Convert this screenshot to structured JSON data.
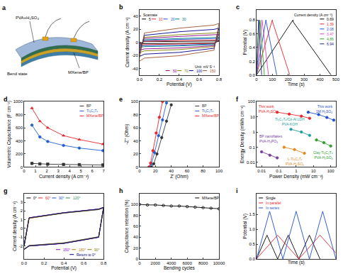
{
  "diagram": {
    "title": "a",
    "electrolyte_label": "PVA+H₂SO₄",
    "state_label": "Bend state",
    "electrode_label": "MXene/BP"
  },
  "chart_data": [
    {
      "title": "b",
      "type": "line",
      "xlabel": "Potential (V)",
      "ylabel": "Current density (A cm⁻³)",
      "x": [
        0,
        0.05,
        0.4,
        0.75,
        0.8,
        0.75,
        0.4,
        0.05,
        0
      ],
      "xlim": [
        0,
        0.8
      ],
      "xticks": [
        {
          "value": 0,
          "label": "0.0"
        },
        0.2,
        0.4,
        0.6,
        0.8
      ],
      "ylim": [
        -50,
        50
      ],
      "yticks": [
        -40,
        -20,
        0,
        20,
        40
      ],
      "grid": false,
      "legend": "top left",
      "annotations": [
        "Scanrate",
        "Unit: mV S⁻¹"
      ],
      "series": [
        {
          "name": "5",
          "color": "#000000",
          "values": [
            -1.7,
            1.0,
            1.5,
            1.9,
            2.0,
            -0.9,
            -1.4,
            -1.7,
            -2.0
          ]
        },
        {
          "name": "10",
          "color": "#e8262b",
          "values": [
            -3,
            1.8,
            2.7,
            3.3,
            3.6,
            -1.5,
            -2.6,
            -3,
            -3.6
          ]
        },
        {
          "name": "20",
          "color": "#1f4fd1",
          "values": [
            -5,
            3,
            4.5,
            5.5,
            6,
            -2.5,
            -4.3,
            -5,
            -6
          ]
        },
        {
          "name": "30",
          "color": "#008080",
          "values": [
            -6.5,
            3.9,
            5.9,
            7.2,
            7.8,
            -3.3,
            -5.5,
            -6.5,
            -7.8
          ]
        },
        {
          "name": "50",
          "color": "#8b008b",
          "values": [
            -10,
            6,
            9,
            11,
            12,
            -5,
            -8.5,
            -10,
            -12
          ]
        },
        {
          "name": "70",
          "color": "#808000",
          "values": [
            -13,
            7.8,
            11.7,
            14.3,
            15.6,
            -6.5,
            -11,
            -13,
            -15.6
          ]
        },
        {
          "name": "100",
          "color": "#00008b",
          "values": [
            -18,
            10.8,
            16.2,
            19.8,
            21.6,
            -9,
            -15.3,
            -18,
            -21.6
          ]
        },
        {
          "name": "150",
          "color": "#a0522d",
          "values": [
            -24,
            14.4,
            21.6,
            26.4,
            28.8,
            -12,
            -20.4,
            -24,
            -28.8
          ]
        }
      ]
    },
    {
      "title": "c",
      "type": "line",
      "xlabel": "Time (s)",
      "ylabel": "Potential (V)",
      "xlim": [
        0,
        500
      ],
      "xticks": [
        0,
        100,
        200,
        300,
        400,
        500
      ],
      "ylim": [
        0,
        0.95
      ],
      "yticks": [
        {
          "value": 0,
          "label": "0.0"
        },
        0.2,
        0.4,
        0.6,
        0.8
      ],
      "grid": false,
      "legend": "top right",
      "annotations": [
        "Current density (A cm⁻³)"
      ],
      "series": [
        {
          "name": "0.69",
          "color": "#000000",
          "x": [
            0,
            230,
            232,
            470
          ],
          "values": [
            0,
            0.8,
            0.77,
            0
          ]
        },
        {
          "name": "1.39",
          "color": "#e8262b",
          "x": [
            0,
            100,
            102,
            210
          ],
          "values": [
            0,
            0.8,
            0.77,
            0
          ]
        },
        {
          "name": "2.08",
          "color": "#1f4fd1",
          "x": [
            0,
            60,
            62,
            128
          ],
          "values": [
            0,
            0.8,
            0.77,
            0
          ]
        },
        {
          "name": "3.47",
          "color": "#e040c0",
          "x": [
            0,
            35,
            37,
            76
          ],
          "values": [
            0,
            0.8,
            0.77,
            0
          ]
        },
        {
          "name": "4.86",
          "color": "#2e9e2e",
          "x": [
            0,
            22,
            24,
            50
          ],
          "values": [
            0,
            0.8,
            0.77,
            0
          ]
        },
        {
          "name": "6.94",
          "color": "#1a237e",
          "x": [
            0,
            14,
            16,
            33
          ],
          "values": [
            0,
            0.8,
            0.77,
            0
          ]
        }
      ]
    },
    {
      "title": "d",
      "type": "line",
      "xlabel": "Current density (A cm⁻³)",
      "ylabel": "Volumetric Capacitance (F cm⁻³)",
      "x": [
        0.69,
        1.39,
        2.08,
        3.47,
        4.86,
        6.94
      ],
      "xlim": [
        0,
        7
      ],
      "xticks": [
        0,
        1,
        2,
        3,
        4,
        5,
        6,
        7
      ],
      "ylim": [
        0,
        1000
      ],
      "yticks": [
        0,
        200,
        400,
        600,
        800,
        1000
      ],
      "grid": false,
      "legend": "top right",
      "series": [
        {
          "name": "BP",
          "color": "#333333",
          "marker": "square",
          "values": [
            55,
            48,
            44,
            40,
            36,
            32
          ]
        },
        {
          "name": "Ti₃C₂Tₓ",
          "color": "#1f5fd1",
          "marker": "circle",
          "values": [
            640,
            460,
            390,
            330,
            290,
            250
          ]
        },
        {
          "name": "MXene/BP",
          "color": "#e8262b",
          "marker": "triangle-up",
          "values": [
            900,
            700,
            600,
            480,
            420,
            350
          ]
        }
      ]
    },
    {
      "title": "e",
      "type": "line",
      "xlabel": "Z' (Ohm)",
      "ylabel": "-Z'' (Ohm)",
      "xlim": [
        0,
        100
      ],
      "xticks": [
        0,
        20,
        40,
        60,
        80,
        100
      ],
      "ylim": [
        0,
        100
      ],
      "yticks": [
        0,
        20,
        40,
        60,
        80,
        100
      ],
      "grid": false,
      "legend": "top right",
      "series": [
        {
          "name": "BP",
          "color": "#333333",
          "marker": "circle",
          "x": [
            15,
            18,
            22,
            28,
            34,
            40
          ],
          "values": [
            0,
            5,
            20,
            45,
            70,
            95
          ]
        },
        {
          "name": "Ti₃C₂Tₓ",
          "color": "#1f5fd1",
          "marker": "circle",
          "x": [
            13,
            15,
            19,
            24,
            29,
            34
          ],
          "values": [
            0,
            5,
            22,
            48,
            72,
            98
          ]
        },
        {
          "name": "MXene/BP",
          "color": "#e8262b",
          "marker": "circle",
          "x": [
            12,
            14,
            17,
            21,
            25,
            29
          ],
          "values": [
            0,
            6,
            25,
            52,
            76,
            100
          ]
        }
      ]
    },
    {
      "title": "f",
      "type": "line",
      "xlabel": "Power Density (mW cm⁻³)",
      "ylabel": "Energy Density (mWh cm⁻³)",
      "log": true,
      "xlim": [
        0.005,
        200
      ],
      "xticks": [
        0.01,
        0.1,
        1,
        10,
        100
      ],
      "ylim": [
        0.005,
        100
      ],
      "yticks": [
        0.01,
        0.1,
        1,
        10,
        100
      ],
      "grid": false,
      "series": [
        {
          "name": "This work\nPVA-H₂SO₄",
          "color": "#e8262b",
          "marker": "circle",
          "x": [
            0.08,
            0.4,
            2,
            6
          ],
          "values": [
            20,
            15,
            11,
            8
          ]
        },
        {
          "name": "This work\n1M H₂SO₄",
          "color": "#1f4fd1",
          "marker": "circle",
          "x": [
            5,
            20,
            60,
            150
          ],
          "values": [
            20,
            14,
            9,
            6
          ]
        },
        {
          "name": "Ti₃C₂Tₓ/Co-Al LDH\nPVA-KOH",
          "color": "#1f9e9e",
          "marker": "circle",
          "x": [
            0.5,
            2,
            6
          ],
          "values": [
            1.5,
            1,
            0.6
          ]
        },
        {
          "name": "Clay Ti₃C₂Tₓ\nPVA-H₂SO₄",
          "color": "#2e9e2e",
          "marker": "circle",
          "x": [
            15,
            40,
            100
          ],
          "values": [
            0.3,
            0.2,
            0.12
          ]
        },
        {
          "name": "L-Ti₃C₂Tₓ\nPVA-H₂SO₄",
          "color": "#e08a1e",
          "marker": "circle",
          "x": [
            0.2,
            0.8,
            3
          ],
          "values": [
            0.1,
            0.07,
            0.04
          ]
        },
        {
          "name": "BP nanoflakes\nPVA-H₃PO₄",
          "color": "#7b3fa0",
          "marker": "circle",
          "x": [
            0.01,
            0.03,
            0.08
          ],
          "values": [
            0.05,
            0.03,
            0.02
          ]
        }
      ]
    },
    {
      "title": "g",
      "type": "line",
      "xlabel": "Potential (V)",
      "ylabel": "Current density (A cm⁻³)",
      "x": [
        0,
        0.05,
        0.4,
        0.75,
        0.8,
        0.75,
        0.4,
        0.05,
        0
      ],
      "xlim": [
        0,
        0.8
      ],
      "xticks": [
        {
          "value": 0,
          "label": "0.0"
        },
        0.2,
        0.4,
        0.6,
        0.8
      ],
      "ylim": [
        -3.5,
        4
      ],
      "yticks": [
        -2,
        -1,
        0,
        1,
        2,
        3
      ],
      "grid": false,
      "legend": "top left",
      "series": [
        {
          "name": "0°",
          "color": "#000000",
          "values": [
            -2.0,
            1.2,
            1.8,
            2.2,
            2.4,
            -1.0,
            -1.7,
            -2.0,
            -2.4
          ]
        },
        {
          "name": "60°",
          "color": "#e8262b",
          "values": [
            -2.0,
            1.15,
            1.78,
            2.18,
            2.38,
            -1.0,
            -1.68,
            -1.98,
            -2.38
          ]
        },
        {
          "name": "90°",
          "color": "#1f4fd1",
          "values": [
            -1.95,
            1.18,
            1.75,
            2.15,
            2.35,
            -0.95,
            -1.65,
            -1.95,
            -2.35
          ]
        },
        {
          "name": "120°",
          "color": "#2e8b57",
          "values": [
            -1.98,
            1.2,
            1.77,
            2.2,
            2.4,
            -0.98,
            -1.7,
            -2.0,
            -2.36
          ]
        },
        {
          "name": "150°",
          "color": "#9400d3",
          "values": [
            -2.02,
            1.22,
            1.8,
            2.22,
            2.42,
            -1.02,
            -1.72,
            -2.02,
            -2.42
          ]
        },
        {
          "name": "180°",
          "color": "#b8860b",
          "values": [
            -1.96,
            1.16,
            1.76,
            2.16,
            2.36,
            -0.97,
            -1.66,
            -1.97,
            -2.37
          ]
        },
        {
          "name": "90°",
          "color": "#808000",
          "values": [
            -1.97,
            1.19,
            1.77,
            2.19,
            2.39,
            -0.99,
            -1.69,
            -1.99,
            -2.39
          ]
        },
        {
          "name": "Return to 0°",
          "color": "#000080",
          "values": [
            -2.0,
            1.21,
            1.79,
            2.21,
            2.41,
            -1.01,
            -1.71,
            -2.01,
            -2.41
          ]
        }
      ]
    },
    {
      "title": "h",
      "type": "line",
      "xlabel": "Bending cycles",
      "ylabel": "Capacitance retention (%)",
      "x": [
        0,
        1000,
        2000,
        3000,
        4000,
        5000,
        6000,
        7000,
        8000,
        9000,
        10000
      ],
      "xlim": [
        0,
        10000
      ],
      "xticks": [
        0,
        2000,
        4000,
        6000,
        8000,
        10000
      ],
      "ylim": [
        0,
        120
      ],
      "yticks": [
        0,
        20,
        40,
        60,
        80,
        100
      ],
      "grid": false,
      "legend": "top right",
      "series": [
        {
          "name": "MXene/BP",
          "color": "#000000",
          "marker": "circle-open",
          "values": [
            100,
            99,
            99,
            98,
            97,
            97,
            96,
            95,
            94,
            93,
            92
          ]
        }
      ]
    },
    {
      "title": "i",
      "type": "line",
      "xlabel": "Time (s)",
      "ylabel": "Potential (V)",
      "xlim": [
        0,
        60
      ],
      "ylim": [
        0,
        2.2
      ],
      "yticks": [
        {
          "value": 0,
          "label": "0.0"
        },
        0.5,
        {
          "value": 1,
          "label": "1.0"
        },
        1.5
      ],
      "tick_labels": "y",
      "grid": false,
      "legend": "top left",
      "series": [
        {
          "name": "Single",
          "color": "#000000",
          "x": [
            0,
            8,
            16,
            24,
            32,
            40,
            48
          ],
          "values": [
            0,
            0.8,
            0,
            0.8,
            0,
            0.8,
            0
          ]
        },
        {
          "name": "In parallel",
          "color": "#e8262b",
          "x": [
            0,
            16,
            32,
            48,
            60
          ],
          "values": [
            0,
            0.8,
            0,
            0.8,
            0.2
          ]
        },
        {
          "name": "In series",
          "color": "#1f4fd1",
          "x": [
            0,
            10,
            20,
            30,
            40,
            50,
            60
          ],
          "values": [
            0,
            1.6,
            0,
            1.6,
            0,
            1.6,
            0
          ]
        }
      ]
    }
  ]
}
